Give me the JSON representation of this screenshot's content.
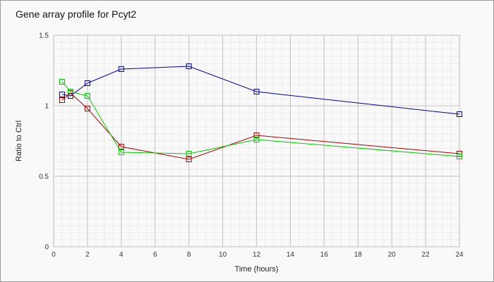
{
  "chart_data": {
    "type": "line",
    "title": "Gene array profile for Pcyt2",
    "xlabel": "Time (hours)",
    "ylabel": "Ratio to Ctrl",
    "xlim": [
      0,
      24
    ],
    "ylim": [
      0,
      1.5
    ],
    "x_ticks": [
      0,
      2,
      4,
      6,
      8,
      10,
      12,
      14,
      16,
      18,
      20,
      22,
      24
    ],
    "y_ticks": [
      0,
      0.5,
      1,
      1.5
    ],
    "y_tick_labels": [
      "0",
      "0.5",
      "1",
      "1.5"
    ],
    "grid": true,
    "legend": "none",
    "series": [
      {
        "color": "#0000a0",
        "x": [
          0.5,
          1,
          2,
          4,
          8,
          12,
          24
        ],
        "y": [
          1.08,
          1.07,
          1.16,
          1.26,
          1.28,
          1.1,
          0.94
        ]
      },
      {
        "color": "#b00000",
        "x": [
          0.5,
          1,
          2,
          4,
          8,
          12,
          24
        ],
        "y": [
          1.04,
          1.09,
          0.98,
          0.71,
          0.62,
          0.79,
          0.66
        ]
      },
      {
        "color": "#00cc00",
        "x": [
          0.5,
          1,
          2,
          4,
          8,
          12,
          24
        ],
        "y": [
          1.17,
          1.1,
          1.07,
          0.67,
          0.66,
          0.76,
          0.64
        ]
      }
    ]
  }
}
